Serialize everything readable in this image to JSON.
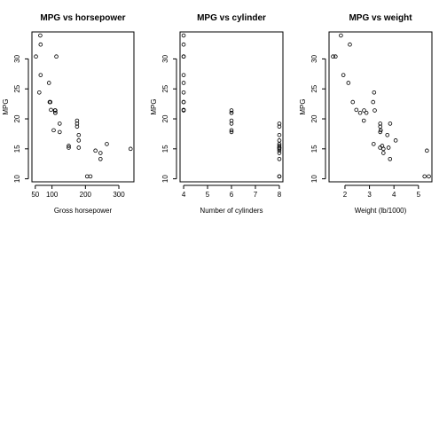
{
  "chart_data": [
    {
      "type": "scatter",
      "title": "MPG vs horsepower",
      "xlabel": "Gross horsepower",
      "ylabel": "MPG",
      "xlim": [
        40,
        345
      ],
      "ylim": [
        9.5,
        34.5
      ],
      "xticks": [
        50,
        100,
        200,
        300
      ],
      "yticks": [
        10,
        15,
        20,
        25,
        30
      ],
      "points": [
        [
          110,
          21.0
        ],
        [
          110,
          21.0
        ],
        [
          93,
          22.8
        ],
        [
          110,
          21.4
        ],
        [
          175,
          18.7
        ],
        [
          105,
          18.1
        ],
        [
          245,
          14.3
        ],
        [
          62,
          24.4
        ],
        [
          95,
          22.8
        ],
        [
          123,
          19.2
        ],
        [
          123,
          17.8
        ],
        [
          180,
          16.4
        ],
        [
          180,
          17.3
        ],
        [
          180,
          15.2
        ],
        [
          205,
          10.4
        ],
        [
          215,
          10.4
        ],
        [
          230,
          14.7
        ],
        [
          66,
          32.4
        ],
        [
          52,
          30.4
        ],
        [
          65,
          33.9
        ],
        [
          97,
          21.5
        ],
        [
          150,
          15.5
        ],
        [
          150,
          15.2
        ],
        [
          245,
          13.3
        ],
        [
          175,
          19.2
        ],
        [
          66,
          27.3
        ],
        [
          91,
          26.0
        ],
        [
          113,
          30.4
        ],
        [
          264,
          15.8
        ],
        [
          175,
          19.7
        ],
        [
          335,
          15.0
        ],
        [
          109,
          21.4
        ]
      ]
    },
    {
      "type": "scatter",
      "title": "MPG vs cylinder",
      "xlabel": "Number of cylinders",
      "ylabel": "MPG",
      "xlim": [
        3.85,
        8.15
      ],
      "ylim": [
        9.5,
        34.5
      ],
      "xticks": [
        4,
        5,
        6,
        7,
        8
      ],
      "yticks": [
        10,
        15,
        20,
        25,
        30
      ],
      "points": [
        [
          6,
          21.0
        ],
        [
          6,
          21.0
        ],
        [
          4,
          22.8
        ],
        [
          6,
          21.4
        ],
        [
          8,
          18.7
        ],
        [
          6,
          18.1
        ],
        [
          8,
          14.3
        ],
        [
          4,
          24.4
        ],
        [
          4,
          22.8
        ],
        [
          6,
          19.2
        ],
        [
          6,
          17.8
        ],
        [
          8,
          16.4
        ],
        [
          8,
          17.3
        ],
        [
          8,
          15.2
        ],
        [
          8,
          10.4
        ],
        [
          8,
          10.4
        ],
        [
          8,
          14.7
        ],
        [
          4,
          32.4
        ],
        [
          4,
          30.4
        ],
        [
          4,
          33.9
        ],
        [
          4,
          21.5
        ],
        [
          8,
          15.5
        ],
        [
          8,
          15.2
        ],
        [
          8,
          13.3
        ],
        [
          8,
          19.2
        ],
        [
          4,
          27.3
        ],
        [
          4,
          26.0
        ],
        [
          4,
          30.4
        ],
        [
          8,
          15.8
        ],
        [
          6,
          19.7
        ],
        [
          8,
          15.0
        ],
        [
          4,
          21.4
        ]
      ]
    },
    {
      "type": "scatter",
      "title": "MPG vs weight",
      "xlabel": "Weight (lb/1000)",
      "ylabel": "MPG",
      "xlim": [
        1.35,
        5.55
      ],
      "ylim": [
        9.5,
        34.5
      ],
      "xticks": [
        2,
        3,
        4,
        5
      ],
      "yticks": [
        10,
        15,
        20,
        25,
        30
      ],
      "points": [
        [
          2.62,
          21.0
        ],
        [
          2.875,
          21.0
        ],
        [
          2.32,
          22.8
        ],
        [
          3.215,
          21.4
        ],
        [
          3.44,
          18.7
        ],
        [
          3.46,
          18.1
        ],
        [
          3.57,
          14.3
        ],
        [
          3.19,
          24.4
        ],
        [
          3.15,
          22.8
        ],
        [
          3.44,
          19.2
        ],
        [
          3.44,
          17.8
        ],
        [
          4.07,
          16.4
        ],
        [
          3.73,
          17.3
        ],
        [
          3.78,
          15.2
        ],
        [
          5.25,
          10.4
        ],
        [
          5.424,
          10.4
        ],
        [
          5.345,
          14.7
        ],
        [
          2.2,
          32.4
        ],
        [
          1.615,
          30.4
        ],
        [
          1.835,
          33.9
        ],
        [
          2.465,
          21.5
        ],
        [
          3.52,
          15.5
        ],
        [
          3.435,
          15.2
        ],
        [
          3.84,
          13.3
        ],
        [
          3.845,
          19.2
        ],
        [
          1.935,
          27.3
        ],
        [
          2.14,
          26.0
        ],
        [
          1.513,
          30.4
        ],
        [
          3.17,
          15.8
        ],
        [
          2.77,
          19.7
        ],
        [
          3.57,
          15.0
        ],
        [
          2.78,
          21.4
        ]
      ]
    }
  ]
}
